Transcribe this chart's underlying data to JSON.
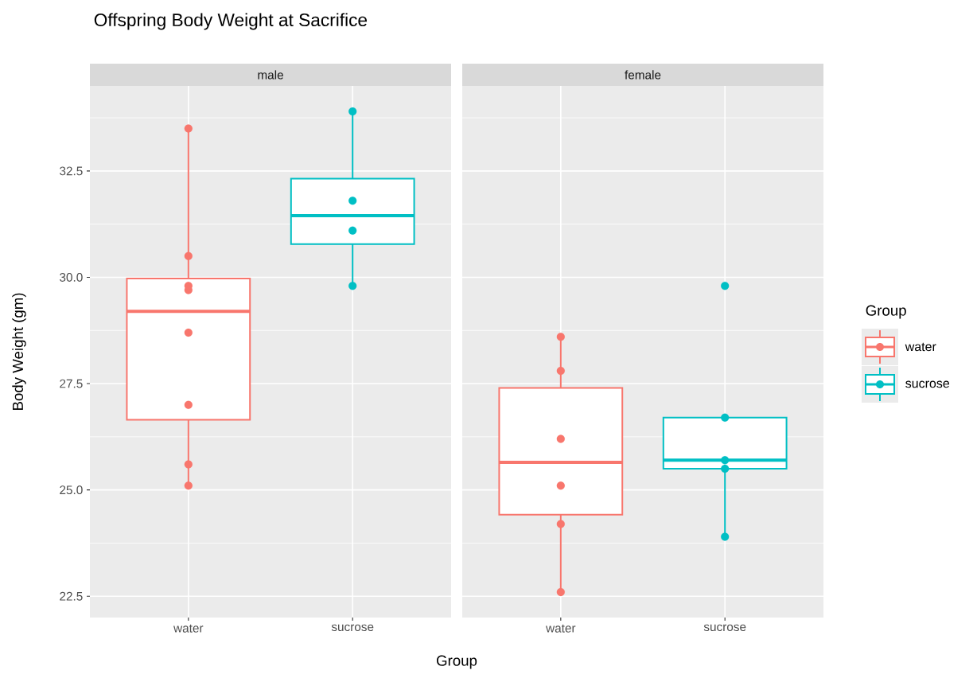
{
  "chart_data": [
    {
      "type": "box",
      "title": "Offspring Body Weight at Sacrifice",
      "subtitle": "male",
      "xlabel": "Group",
      "ylabel": "Body Weight (gm)",
      "categories": [
        "water",
        "sucrose"
      ],
      "colors": [
        "#f8766d",
        "#00bfc4"
      ],
      "boxes": [
        {
          "low": 25.1,
          "q1": 26.65,
          "median": 29.2,
          "q3": 29.97,
          "high": 33.5
        },
        {
          "low": 29.8,
          "q1": 30.78,
          "median": 31.45,
          "q3": 32.32,
          "high": 33.9
        }
      ],
      "series": [
        {
          "type": "scatter",
          "color": "#f8766d",
          "x": [
            "water",
            "water",
            "water",
            "water",
            "water",
            "water",
            "water",
            "water"
          ],
          "values": [
            25.1,
            25.6,
            27.0,
            28.7,
            29.7,
            29.8,
            30.5,
            33.5
          ]
        },
        {
          "type": "scatter",
          "color": "#00bfc4",
          "x": [
            "sucrose",
            "sucrose",
            "sucrose",
            "sucrose"
          ],
          "values": [
            29.8,
            31.1,
            31.8,
            33.9
          ]
        }
      ],
      "ylim": [
        22.0,
        34.5
      ],
      "yticks": [
        {
          "value": 22.5,
          "label": "22.5"
        },
        {
          "value": 25,
          "label": "25.0"
        },
        {
          "value": 27.5,
          "label": "27.5"
        },
        {
          "value": 30,
          "label": "30.0"
        },
        {
          "value": 32.5,
          "label": "32.5"
        }
      ],
      "grid": true
    },
    {
      "type": "box",
      "subtitle": "female",
      "legend_title": "Group",
      "categories": [
        "water",
        "sucrose"
      ],
      "colors": [
        "#f8766d",
        "#00bfc4"
      ],
      "boxes": [
        {
          "low": 22.6,
          "q1": 24.42,
          "median": 25.65,
          "q3": 27.4,
          "high": 28.6
        },
        {
          "low": 23.9,
          "q1": 25.5,
          "median": 25.7,
          "q3": 26.7,
          "high": 26.7
        }
      ],
      "series": [
        {
          "name": "water",
          "type": "scatter",
          "color": "#f8766d",
          "x": [
            "water",
            "water",
            "water",
            "water",
            "water",
            "water"
          ],
          "values": [
            22.6,
            24.2,
            25.1,
            26.2,
            27.8,
            28.6
          ]
        },
        {
          "name": "sucrose",
          "type": "scatter",
          "color": "#00bfc4",
          "x": [
            "sucrose",
            "sucrose",
            "sucrose",
            "sucrose",
            "sucrose"
          ],
          "values": [
            23.9,
            25.5,
            25.7,
            26.7,
            29.8
          ]
        }
      ],
      "ylim": [
        22.0,
        34.5
      ],
      "yticks": [
        22.5,
        25,
        27.5,
        30,
        32.5
      ],
      "tick_labels": "x",
      "grid": true,
      "legend": "right"
    }
  ]
}
